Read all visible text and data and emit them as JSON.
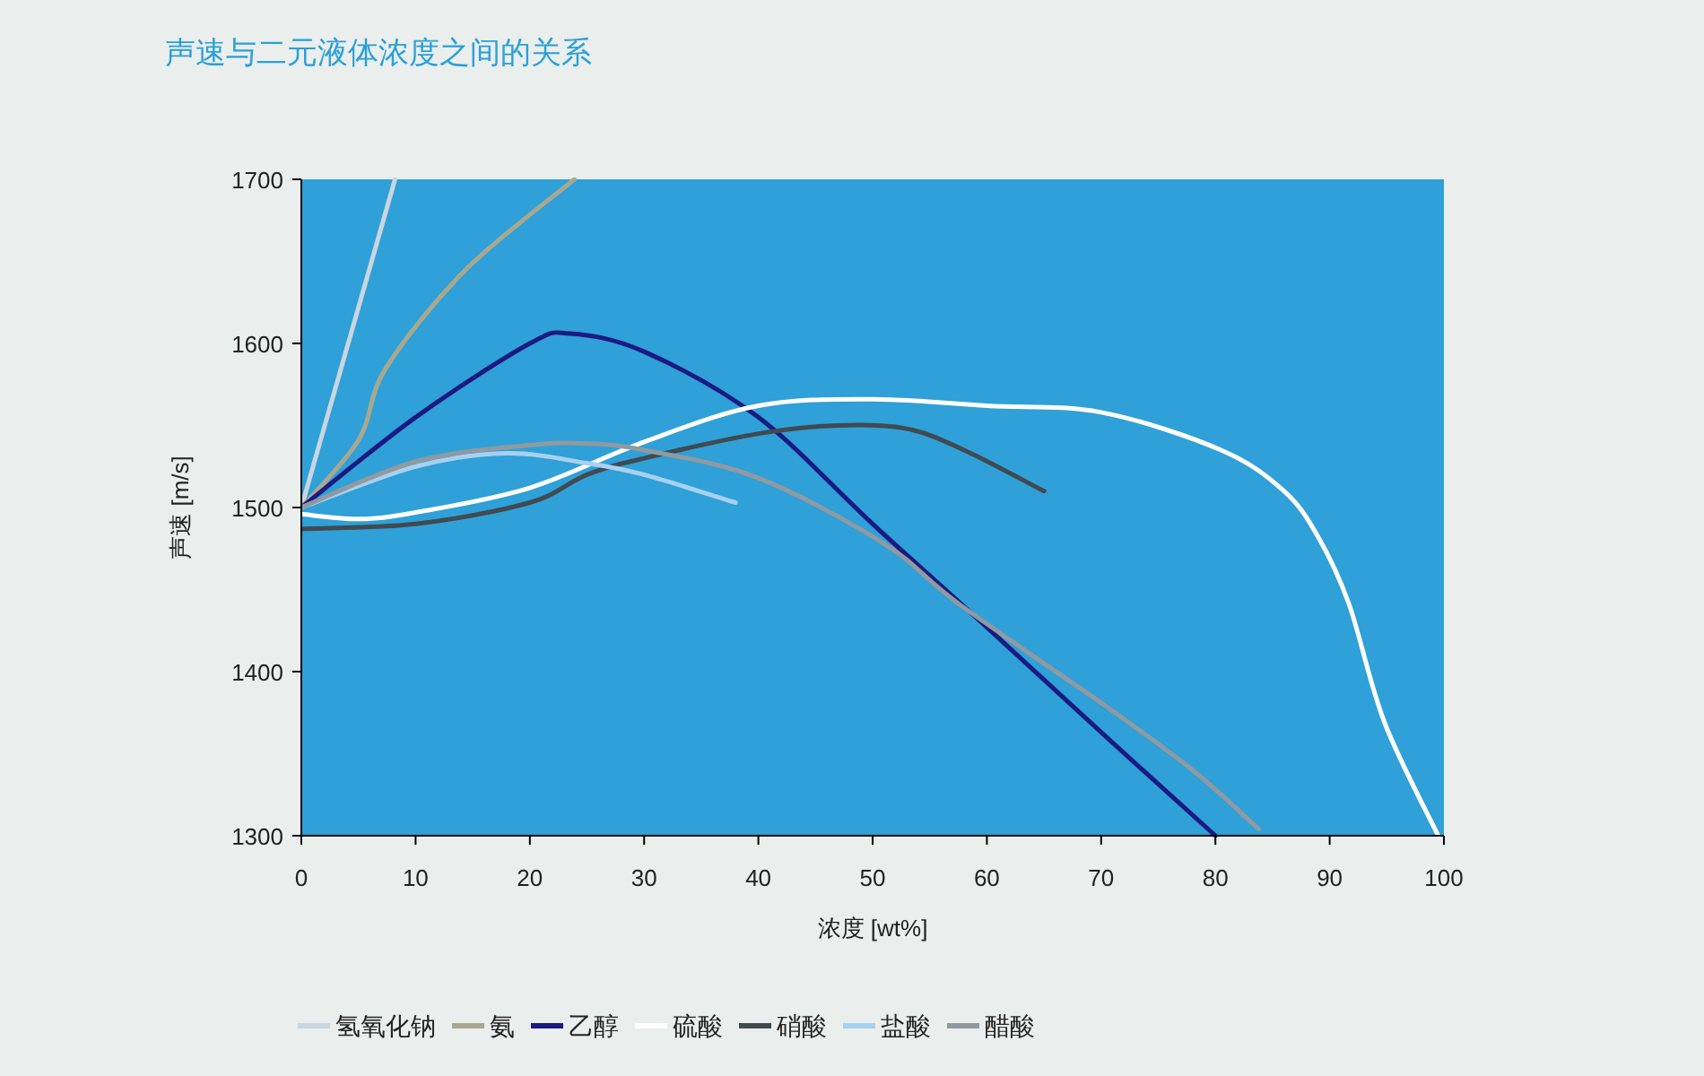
{
  "chart_data": {
    "type": "line",
    "title": "声速与二元液体浓度之间的关系",
    "xlabel": "浓度 [wt%]",
    "ylabel": "声速 [m/s]",
    "xlim": [
      0,
      100
    ],
    "xticks": [
      0,
      10,
      20,
      30,
      40,
      50,
      60,
      70,
      80,
      90,
      100
    ],
    "ylim": [
      1300,
      1700
    ],
    "yticks": [
      1300,
      1400,
      1500,
      1600,
      1700
    ],
    "legend": "bottom",
    "marker": "none",
    "line_style": "solid",
    "series": [
      {
        "name": "氢氧化钠",
        "color": "#c8d6e0",
        "x": [
          0,
          8.2
        ],
        "values": [
          1500,
          1700
        ]
      },
      {
        "name": "氨",
        "color": "#a8a890",
        "x": [
          0,
          5,
          7.4,
          14.4,
          23.9
        ],
        "values": [
          1500,
          1541,
          1585,
          1645,
          1700
        ]
      },
      {
        "name": "乙醇",
        "color": "#1a1a80",
        "x": [
          0,
          10,
          20,
          23.5,
          30,
          40,
          50,
          60,
          70,
          80
        ],
        "values": [
          1500,
          1555,
          1600,
          1606,
          1595,
          1555,
          1490,
          1427,
          1363,
          1300
        ]
      },
      {
        "name": "硫酸",
        "color": "#ffffff",
        "x": [
          0,
          5,
          10,
          20,
          30,
          40,
          50,
          60,
          70,
          80.5,
          86,
          89,
          91.7,
          94.8,
          99.5
        ],
        "values": [
          1496,
          1493,
          1497,
          1512,
          1540,
          1562,
          1566,
          1562,
          1558,
          1535,
          1510,
          1482,
          1441,
          1369,
          1300
        ]
      },
      {
        "name": "硝酸",
        "color": "#404a50",
        "x": [
          0,
          10,
          20,
          25,
          30,
          40,
          47,
          53,
          58,
          65
        ],
        "values": [
          1487,
          1490,
          1503,
          1520,
          1530,
          1545,
          1550,
          1548,
          1535,
          1510
        ]
      },
      {
        "name": "盐酸",
        "color": "#a8d0f0",
        "x": [
          0,
          10,
          18,
          25,
          30,
          38
        ],
        "values": [
          1500,
          1525,
          1533,
          1527,
          1520,
          1503
        ]
      },
      {
        "name": "醋酸",
        "color": "#909aa0",
        "x": [
          0,
          10,
          20,
          25,
          30,
          40,
          51,
          57.6,
          70.6,
          78,
          83.8
        ],
        "values": [
          1500,
          1528,
          1538,
          1539,
          1535,
          1518,
          1478,
          1441,
          1378,
          1340,
          1304
        ]
      }
    ]
  }
}
